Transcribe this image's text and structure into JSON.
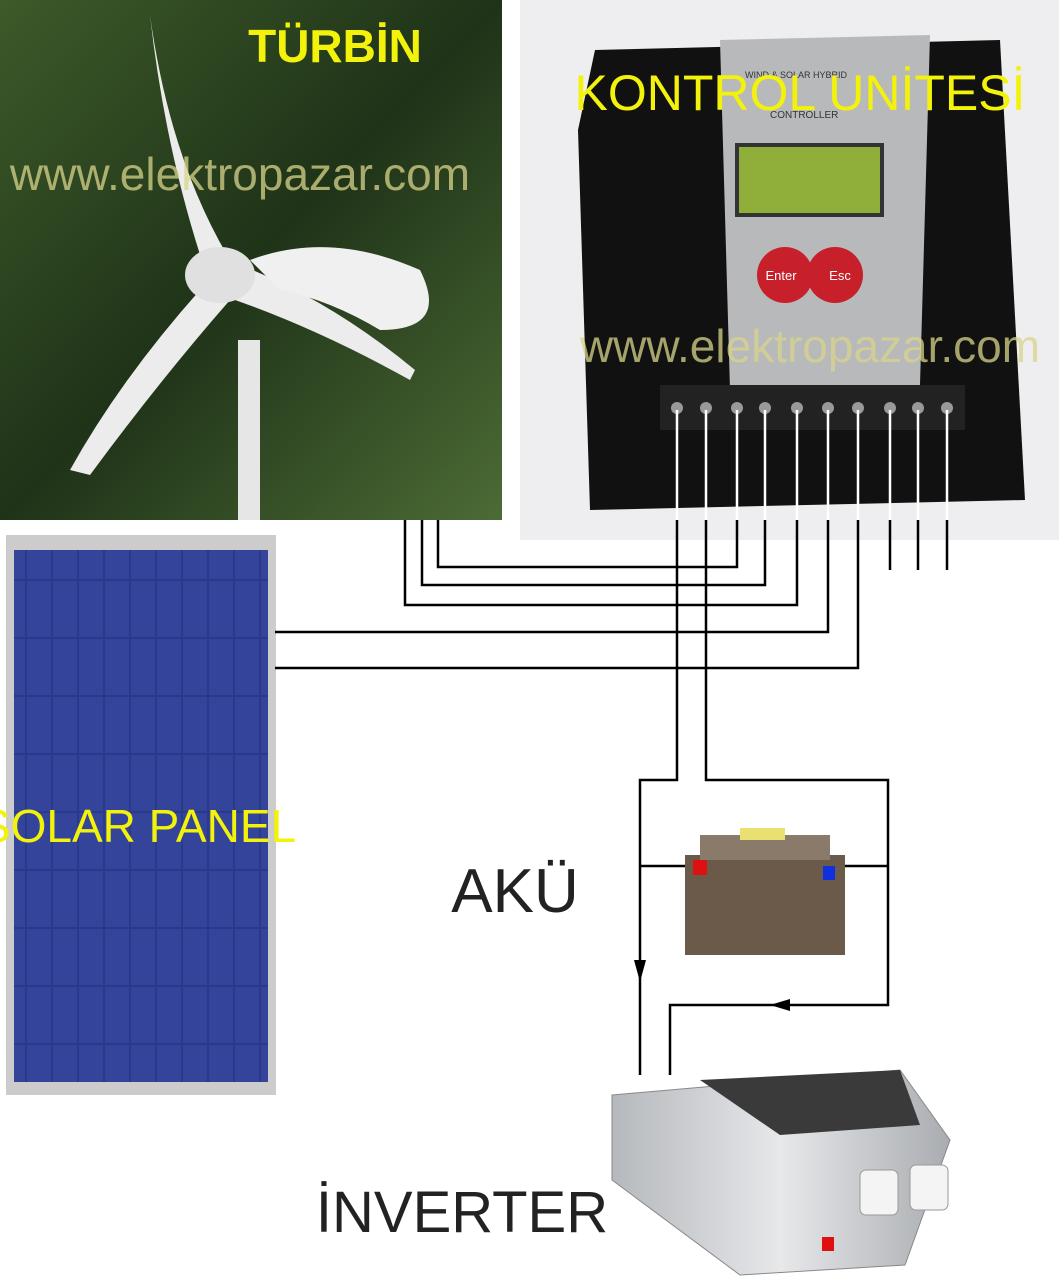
{
  "labels": {
    "turbine": "TÜRBİN",
    "controller": "KONTROL UNİTESİ",
    "solar_panel": "SOLAR PANEL",
    "battery": "AKÜ",
    "inverter": "İNVERTER"
  },
  "watermarks": [
    "www.elektropazar.com",
    "www.elektropazar.com"
  ],
  "controller_panel": {
    "brand": "WIND & SOLAR HYBRID",
    "model": "CONTROLLER",
    "buttons": [
      "Enter",
      "Esc"
    ]
  }
}
